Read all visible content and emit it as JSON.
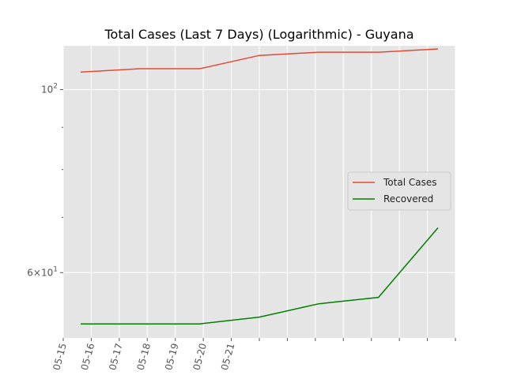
{
  "chart_data": {
    "type": "line",
    "title": "Total Cases (Last 7 Days) (Logarithmic) - Guyana",
    "xlabel": "",
    "ylabel": "",
    "yscale": "log",
    "grid": true,
    "legend": "center-right",
    "x_tick_labels": [
      "05-15",
      "05-16",
      "05-17",
      "05-18",
      "05-19",
      "05-20",
      "05-21"
    ],
    "y_ticks": [
      {
        "value": 100,
        "base": "10",
        "exp": "2",
        "coef": ""
      },
      {
        "value": 60,
        "base": "10",
        "exp": "1",
        "coef": "6"
      }
    ],
    "ylim": [
      50,
      113
    ],
    "x": [
      "05-15",
      "05-16",
      "05-17",
      "05-18",
      "05-19",
      "05-20",
      "05-21"
    ],
    "series": [
      {
        "name": "Total Cases",
        "color": "#E24A33",
        "values": [
          105,
          106,
          106,
          110,
          111,
          111,
          112
        ]
      },
      {
        "name": "Recovered",
        "color": "#008000",
        "values": [
          52,
          52,
          52,
          53,
          55,
          56,
          68
        ]
      }
    ]
  }
}
